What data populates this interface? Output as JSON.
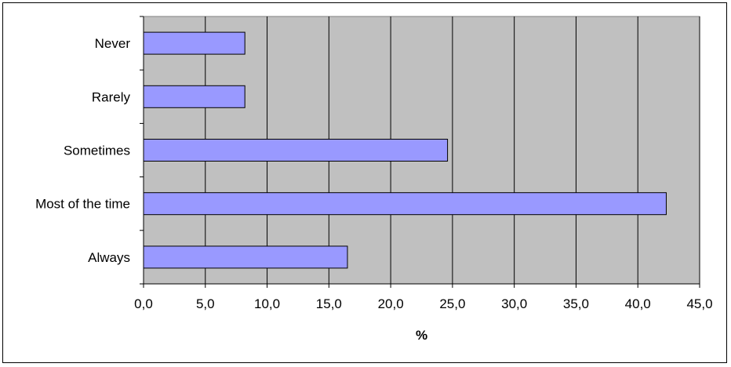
{
  "chart_data": {
    "type": "bar",
    "orientation": "horizontal",
    "categories": [
      "Never",
      "Rarely",
      "Sometimes",
      "Most of the time",
      "Always"
    ],
    "values": [
      8.2,
      8.2,
      24.6,
      42.3,
      16.5
    ],
    "title": "",
    "xlabel": "%",
    "ylabel": "",
    "xlim": [
      0,
      45
    ],
    "x_tick_values": [
      0,
      5,
      10,
      15,
      20,
      25,
      30,
      35,
      40,
      45
    ],
    "x_tick_labels": [
      "0,0",
      "5,0",
      "10,0",
      "15,0",
      "20,0",
      "25,0",
      "30,0",
      "35,0",
      "40,0",
      "45,0"
    ],
    "grid": "vertical",
    "legend": "none",
    "colors": {
      "bar_fill": "#9999ff",
      "plot_background": "#c0c0c0",
      "grid": "#000000"
    }
  }
}
